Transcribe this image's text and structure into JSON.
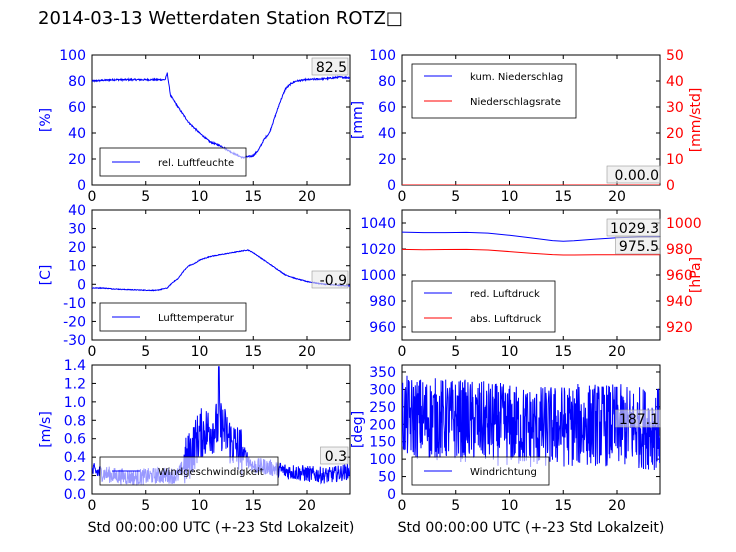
{
  "title": "2014-03-13 Wetterdaten Station ROTZ□",
  "colors": {
    "left_axis": "#0000ff",
    "right_axis": "#ff0000",
    "legend_border": "#000000"
  },
  "chart_data": [
    {
      "type": "line",
      "panel": "humidity",
      "ylabel": "[%]",
      "xlim": [
        0,
        24
      ],
      "ylim": [
        0,
        100
      ],
      "xticks": [
        0,
        5,
        10,
        15,
        20
      ],
      "yticks": [
        0,
        20,
        40,
        60,
        80,
        100
      ],
      "series": [
        {
          "name": "rel. Luftfeuchte",
          "color": "#0000ff",
          "noise": 1.2,
          "x": [
            0,
            1,
            2,
            3,
            4,
            5,
            6,
            6.8,
            7.0,
            7.3,
            8,
            9,
            10,
            11,
            12,
            13,
            14,
            15,
            15.5,
            16,
            16.5,
            17,
            17.5,
            18,
            18.5,
            19,
            20,
            21,
            22,
            23,
            24
          ],
          "y": [
            80,
            80.5,
            81,
            81,
            81,
            81,
            81,
            81,
            86,
            69,
            60,
            48,
            40,
            33,
            30,
            25,
            21,
            22.5,
            27,
            35,
            40,
            52,
            64,
            74,
            78,
            80,
            81,
            81.5,
            82,
            83,
            82.5
          ]
        }
      ],
      "annotation": "82.5"
    },
    {
      "type": "line",
      "panel": "precipitation",
      "ylabel": "[mm]",
      "y2label": "[mm/std]",
      "xlim": [
        0,
        24
      ],
      "ylim": [
        0,
        100
      ],
      "y2lim": [
        0,
        50
      ],
      "xticks": [
        0,
        5,
        10,
        15,
        20
      ],
      "yticks": [
        0,
        20,
        40,
        60,
        80,
        100
      ],
      "y2ticks": [
        0,
        10,
        20,
        30,
        40,
        50
      ],
      "series": [
        {
          "name": "kum. Niederschlag",
          "color": "#0000ff",
          "x": [
            0,
            24
          ],
          "y": [
            0,
            0
          ]
        },
        {
          "name": "Niederschlagsrate",
          "color": "#ff0000",
          "axis": "right",
          "x": [
            0,
            24
          ],
          "y": [
            0,
            0
          ]
        }
      ],
      "annotation": "0.00.0"
    },
    {
      "type": "line",
      "panel": "temperature",
      "ylabel": "[C]",
      "xlim": [
        0,
        24
      ],
      "ylim": [
        -30,
        40
      ],
      "xticks": [
        0,
        5,
        10,
        15,
        20
      ],
      "yticks": [
        -30,
        -20,
        -10,
        0,
        10,
        20,
        30,
        40
      ],
      "series": [
        {
          "name": "Lufttemperatur",
          "color": "#0000ff",
          "noise": 0.4,
          "x": [
            0,
            1,
            2,
            3,
            4,
            5,
            6,
            7,
            7.5,
            8,
            8.5,
            9,
            9.5,
            10,
            11,
            12,
            13,
            14,
            14.5,
            15,
            16,
            17,
            18,
            19,
            20,
            21,
            22,
            23,
            24
          ],
          "y": [
            -2,
            -2,
            -2.5,
            -2.8,
            -3,
            -3.2,
            -3.3,
            -2,
            1,
            3,
            7,
            10,
            11,
            13,
            15,
            16,
            17,
            18,
            18.5,
            17,
            13,
            9,
            5,
            3,
            1.5,
            0.5,
            -0.2,
            -0.6,
            -0.9
          ]
        }
      ],
      "annotation": "-0.9"
    },
    {
      "type": "line",
      "panel": "pressure",
      "ylabel": "",
      "y2label": "[hPa]",
      "xlim": [
        0,
        24
      ],
      "ylim": [
        950,
        1050
      ],
      "y2lim": [
        910,
        1010
      ],
      "xticks": [
        0,
        5,
        10,
        15,
        20
      ],
      "yticks": [
        960,
        980,
        1000,
        1020,
        1040
      ],
      "y2ticks": [
        920,
        940,
        960,
        980,
        1000
      ],
      "series": [
        {
          "name": "red. Luftdruck",
          "color": "#0000ff",
          "x": [
            0,
            2,
            4,
            6,
            8,
            10,
            12,
            14,
            15,
            16,
            18,
            20,
            22,
            24
          ],
          "y": [
            1033,
            1032.6,
            1032.6,
            1032.8,
            1032.2,
            1030.5,
            1028.5,
            1026.5,
            1026,
            1026.3,
            1027.6,
            1028.6,
            1029.2,
            1029.3
          ]
        },
        {
          "name": "abs. Luftdruck",
          "color": "#ff0000",
          "axis": "right",
          "x": [
            0,
            2,
            4,
            6,
            8,
            10,
            12,
            14,
            15,
            16,
            18,
            20,
            22,
            24
          ],
          "y": [
            979.7,
            979.5,
            979.6,
            979.7,
            979.2,
            978,
            976.8,
            975.7,
            975.4,
            975.4,
            975.5,
            975.5,
            975.5,
            975.5
          ]
        }
      ],
      "annotations": [
        "1029.3",
        "975.5"
      ]
    },
    {
      "type": "line",
      "panel": "wind_speed",
      "ylabel": "[m/s]",
      "xlabel": "Std 00:00:00 UTC (+-23 Std Lokalzeit)",
      "xlim": [
        0,
        24
      ],
      "ylim": [
        0,
        1.4
      ],
      "xticks": [
        0,
        5,
        10,
        15,
        20
      ],
      "yticks": [
        0.0,
        0.2,
        0.4,
        0.6,
        0.8,
        1.0,
        1.2,
        1.4
      ],
      "series": [
        {
          "name": "Windgeschwindigkeit",
          "color": "#0000ff",
          "noise": 0.1,
          "x": [
            0,
            2,
            4,
            6,
            8,
            8.5,
            9,
            10,
            11,
            12,
            13,
            14,
            15,
            16,
            18,
            20,
            22,
            24
          ],
          "y": [
            0.25,
            0.2,
            0.18,
            0.2,
            0.2,
            0.3,
            0.4,
            0.65,
            0.7,
            0.75,
            0.55,
            0.45,
            0.3,
            0.3,
            0.25,
            0.22,
            0.2,
            0.25
          ]
        }
      ],
      "annotation": "0.3"
    },
    {
      "type": "line",
      "panel": "wind_direction",
      "ylabel": "[deg]",
      "xlabel": "Std 00:00:00 UTC (+-23 Std Lokalzeit)",
      "xlim": [
        0,
        24
      ],
      "ylim": [
        0,
        370
      ],
      "xticks": [
        0,
        5,
        10,
        15,
        20
      ],
      "yticks": [
        0,
        50,
        100,
        150,
        200,
        250,
        300,
        350
      ],
      "series": [
        {
          "name": "Windrichtung",
          "color": "#0000ff",
          "noise": 120,
          "x": [
            0,
            6,
            12,
            18,
            24
          ],
          "y": [
            220,
            210,
            190,
            200,
            187
          ]
        }
      ],
      "annotation": "187.1"
    }
  ]
}
